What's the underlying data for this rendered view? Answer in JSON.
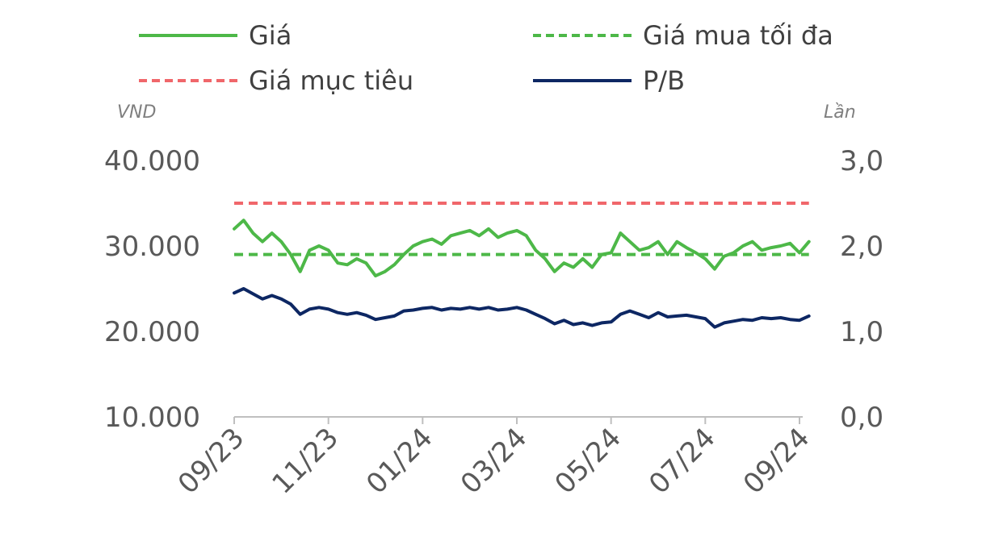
{
  "chart_data": {
    "type": "line",
    "legend_position": "top",
    "grid": false,
    "y_left": {
      "unit": "VND",
      "range": [
        10000,
        40000
      ],
      "ticks": [
        "10.000",
        "20.000",
        "30.000",
        "40.000"
      ]
    },
    "y_right": {
      "unit": "Lần",
      "range": [
        0,
        3
      ],
      "ticks": [
        "0,0",
        "1,0",
        "2,0",
        "3,0"
      ]
    },
    "x_ticks": [
      "09/23",
      "11/23",
      "01/24",
      "03/24",
      "05/24",
      "07/24",
      "09/24"
    ],
    "series": [
      {
        "name": "Giá",
        "axis": "left",
        "color": "#4db848",
        "style": "solid",
        "x": [
          0.0,
          0.1,
          0.2,
          0.3,
          0.4,
          0.5,
          0.6,
          0.7,
          0.8,
          0.9,
          1.0,
          1.1,
          1.2,
          1.3,
          1.4,
          1.5,
          1.6,
          1.7,
          1.8,
          1.9,
          2.0,
          2.1,
          2.2,
          2.3,
          2.4,
          2.5,
          2.6,
          2.7,
          2.8,
          2.9,
          3.0,
          3.1,
          3.2,
          3.3,
          3.4,
          3.5,
          3.6,
          3.7,
          3.8,
          3.9,
          4.0,
          4.1,
          4.2,
          4.3,
          4.4,
          4.5,
          4.6,
          4.7,
          4.8,
          4.9,
          5.0,
          5.1,
          5.2,
          5.3,
          5.4,
          5.5,
          5.6,
          5.7,
          5.8,
          5.9,
          6.0,
          6.1
        ],
        "values": [
          32000,
          33000,
          31500,
          30500,
          31500,
          30500,
          29000,
          27000,
          29500,
          30000,
          29500,
          28000,
          27800,
          28500,
          28000,
          26500,
          27000,
          27800,
          29000,
          30000,
          30500,
          30800,
          30200,
          31200,
          31500,
          31800,
          31200,
          32000,
          31000,
          31500,
          31800,
          31200,
          29500,
          28500,
          27000,
          28000,
          27500,
          28500,
          27500,
          29000,
          29200,
          31500,
          30500,
          29500,
          29800,
          30500,
          29000,
          30500,
          29800,
          29200,
          28500,
          27300,
          28800,
          29200,
          30000,
          30500,
          29500,
          29800,
          30000,
          30300,
          29200,
          30500
        ]
      },
      {
        "name": "Giá mua tối đa",
        "axis": "left",
        "color": "#4db848",
        "style": "dashed",
        "x": [
          0.0,
          6.1
        ],
        "values": [
          29000,
          29000
        ]
      },
      {
        "name": "Giá mục tiêu",
        "axis": "left",
        "color": "#f0676b",
        "style": "dashed",
        "x": [
          0.0,
          6.1
        ],
        "values": [
          35000,
          35000
        ]
      },
      {
        "name": "P/B",
        "axis": "right",
        "color": "#0d2763",
        "style": "solid",
        "x": [
          0.0,
          0.1,
          0.2,
          0.3,
          0.4,
          0.5,
          0.6,
          0.7,
          0.8,
          0.9,
          1.0,
          1.1,
          1.2,
          1.3,
          1.4,
          1.5,
          1.6,
          1.7,
          1.8,
          1.9,
          2.0,
          2.1,
          2.2,
          2.3,
          2.4,
          2.5,
          2.6,
          2.7,
          2.8,
          2.9,
          3.0,
          3.1,
          3.2,
          3.3,
          3.4,
          3.5,
          3.6,
          3.7,
          3.8,
          3.9,
          4.0,
          4.1,
          4.2,
          4.3,
          4.4,
          4.5,
          4.6,
          4.7,
          4.8,
          4.9,
          5.0,
          5.1,
          5.2,
          5.3,
          5.4,
          5.5,
          5.6,
          5.7,
          5.8,
          5.9,
          6.0,
          6.1
        ],
        "values": [
          1.45,
          1.5,
          1.44,
          1.38,
          1.42,
          1.38,
          1.32,
          1.2,
          1.26,
          1.28,
          1.26,
          1.22,
          1.2,
          1.22,
          1.19,
          1.14,
          1.16,
          1.18,
          1.24,
          1.25,
          1.27,
          1.28,
          1.25,
          1.27,
          1.26,
          1.28,
          1.26,
          1.28,
          1.25,
          1.26,
          1.28,
          1.25,
          1.2,
          1.15,
          1.09,
          1.13,
          1.08,
          1.1,
          1.07,
          1.1,
          1.11,
          1.2,
          1.24,
          1.2,
          1.16,
          1.22,
          1.17,
          1.18,
          1.19,
          1.17,
          1.15,
          1.05,
          1.1,
          1.12,
          1.14,
          1.13,
          1.16,
          1.15,
          1.16,
          1.14,
          1.13,
          1.18
        ]
      }
    ]
  }
}
